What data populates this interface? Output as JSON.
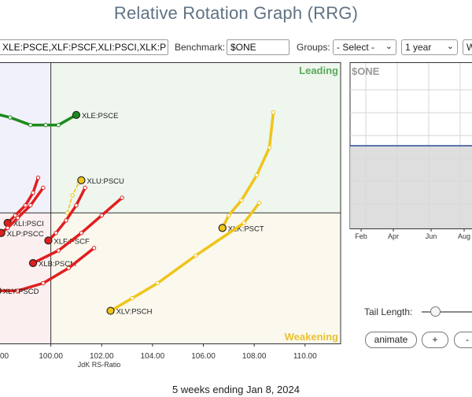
{
  "page": {
    "title": "Relative Rotation Graph (RRG)",
    "footer": "5 weeks ending Jan 8, 2024"
  },
  "toolbar": {
    "symbols_value": "XLE:PSCE,XLF:PSCF,XLI:PSCI,XLK:P",
    "benchmark_label": "Benchmark:",
    "benchmark_value": "$ONE",
    "groups_label": "Groups:",
    "groups_value": "- Select -",
    "period_value": "1 year",
    "extra_value": "W"
  },
  "controls": {
    "tail_length_label": "Tail Length:",
    "animate_label": "animate",
    "plus_label": "+",
    "minus_label": "-",
    "tail_length_fraction": 0.27
  },
  "colors": {
    "leading": "#5aaa5a",
    "weakening": "#e8c233",
    "improving_bg": "#f1f1fb",
    "lagging_bg": "#fcefef",
    "leading_bg": "#eef6ee",
    "weakening_bg": "#fbf8ee",
    "green_series": "#1c8a1c",
    "red_series": "#e01e1e",
    "yellow_series": "#f0c419",
    "benchmark_line": "#2c4a9a"
  },
  "chart_data": [
    {
      "type": "scatter",
      "subtype": "relative-rotation-graph",
      "xlabel": "JdK RS-Ratio",
      "xlim": [
        98.0,
        111.4
      ],
      "ylim": [
        97.4,
        103.0
      ],
      "x_ticks": [
        "100.00",
        "102.00",
        "104.00",
        "106.00",
        "108.00",
        "110.00"
      ],
      "x_tick_values": [
        100,
        102,
        104,
        106,
        108,
        110
      ],
      "partial_tick_label": "00",
      "partial_tick_value": 98,
      "x_center": 100,
      "y_center": 100,
      "quadrant_labels": {
        "leading": "Leading",
        "weakening": "Weakening"
      },
      "series": [
        {
          "name": "XLE:PSCE",
          "color": "#1c8a1c",
          "x": [
            97.6,
            98.4,
            99.2,
            99.8,
            100.3,
            101.0
          ],
          "y": [
            102.0,
            101.9,
            101.75,
            101.75,
            101.75,
            101.95
          ]
        },
        {
          "name": "XLU:PSCU",
          "color": "#f0c419",
          "dashed": true,
          "x": [
            100.65,
            100.85,
            101.1,
            101.2
          ],
          "y": [
            100.0,
            100.35,
            100.6,
            100.65
          ]
        },
        {
          "name": "XLK:PSCT",
          "color": "#f0c419",
          "x": [
            108.75,
            108.6,
            108.1,
            107.5,
            107.0,
            106.75
          ],
          "y": [
            102.0,
            101.3,
            100.75,
            100.25,
            99.95,
            99.7
          ]
        },
        {
          "name": "XLV:PSCH",
          "color": "#f0c419",
          "x": [
            108.2,
            107.6,
            105.7,
            104.2,
            103.2,
            102.35
          ],
          "y": [
            100.2,
            99.8,
            99.15,
            98.6,
            98.3,
            98.05
          ]
        },
        {
          "name": "XLI:PSCI",
          "color": "#e01e1e",
          "x": [
            99.5,
            99.3,
            99.0,
            98.6,
            98.3
          ],
          "y": [
            100.7,
            100.4,
            100.15,
            99.95,
            99.8
          ]
        },
        {
          "name": "XLP:PSCC",
          "color": "#e01e1e",
          "x": [
            99.7,
            99.2,
            98.7,
            98.3,
            98.05
          ],
          "y": [
            100.5,
            100.15,
            99.9,
            99.7,
            99.6
          ]
        },
        {
          "name": "XLF:PSCF",
          "color": "#e01e1e",
          "x": [
            101.35,
            101.0,
            100.6,
            100.2,
            99.9
          ],
          "y": [
            100.5,
            100.15,
            99.85,
            99.6,
            99.45
          ]
        },
        {
          "name": "XLB:PSCM",
          "color": "#e01e1e",
          "x": [
            102.8,
            102.0,
            101.2,
            100.3,
            99.3
          ],
          "y": [
            100.3,
            99.95,
            99.6,
            99.25,
            99.0
          ]
        },
        {
          "name": "XLY:PSCD",
          "color": "#e01e1e",
          "x": [
            101.7,
            100.7,
            99.7,
            98.7,
            97.9
          ],
          "y": [
            99.3,
            98.9,
            98.6,
            98.45,
            98.45
          ]
        }
      ]
    },
    {
      "type": "line",
      "title": "$ONE",
      "x_ticks": [
        "Feb",
        "Apr",
        "Jun",
        "Aug"
      ],
      "y_value": 1.0,
      "ylim": [
        0,
        2
      ]
    }
  ]
}
